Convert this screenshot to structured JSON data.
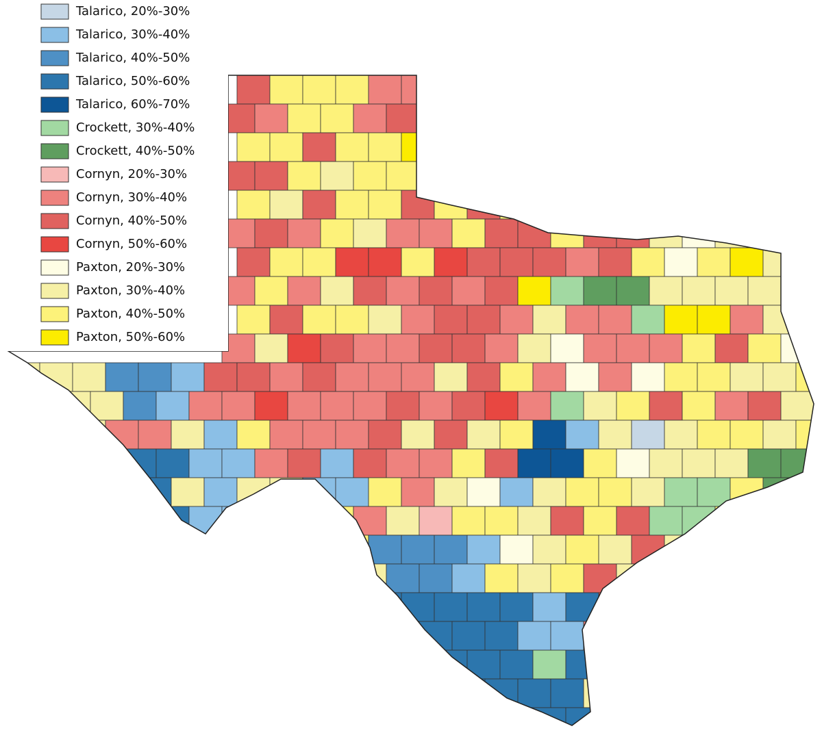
{
  "legend": {
    "items": [
      {
        "label": "Talarico, 20%-30%",
        "color": "#c6d7e6"
      },
      {
        "label": "Talarico, 30%-40%",
        "color": "#8bbfe6"
      },
      {
        "label": "Talarico, 40%-50%",
        "color": "#4e90c5"
      },
      {
        "label": "Talarico, 50%-60%",
        "color": "#2c76ad"
      },
      {
        "label": "Talarico, 60%-70%",
        "color": "#0d5696"
      },
      {
        "label": "Crockett, 30%-40%",
        "color": "#a2d9a2"
      },
      {
        "label": "Crockett, 40%-50%",
        "color": "#5f9e5f"
      },
      {
        "label": "Cornyn, 20%-30%",
        "color": "#f7b9b7"
      },
      {
        "label": "Cornyn, 30%-40%",
        "color": "#ee827e"
      },
      {
        "label": "Cornyn, 40%-50%",
        "color": "#e0625f"
      },
      {
        "label": "Cornyn, 50%-60%",
        "color": "#e84741"
      },
      {
        "label": "Paxton, 20%-30%",
        "color": "#fefde4"
      },
      {
        "label": "Paxton, 30%-40%",
        "color": "#f6f0a6"
      },
      {
        "label": "Paxton, 40%-50%",
        "color": "#fdf27a"
      },
      {
        "label": "Paxton, 50%-60%",
        "color": "#fcec00"
      }
    ]
  }
}
